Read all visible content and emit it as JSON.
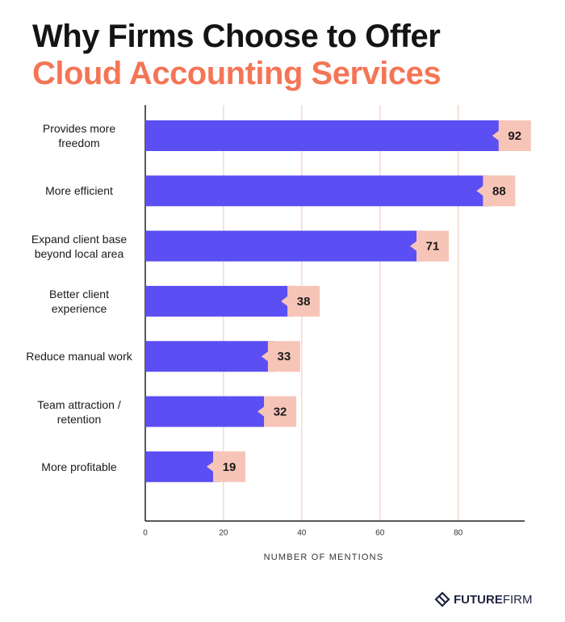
{
  "chart_data": {
    "type": "hbar",
    "title_lines": [
      "Why Firms Choose to Offer",
      "Cloud Accounting Services"
    ],
    "title_colors": [
      "#141414",
      "#f47556"
    ],
    "categories": [
      "Provides more freedom",
      "More efficient",
      "Expand client base beyond local area",
      "Better client experience",
      "Reduce manual work",
      "Team attraction / retention",
      "More profitable"
    ],
    "values": [
      92,
      88,
      71,
      38,
      33,
      32,
      19
    ],
    "color": "#5b4ef2",
    "label_color": "#f7c5b8",
    "xlim": [
      0,
      97
    ],
    "xticks": [
      0,
      20,
      40,
      60,
      80
    ],
    "grid": true,
    "grid_color": "#f6cdc3",
    "x_label": "NUMBER OF MENTIONS",
    "brand": [
      "FUTURE",
      "FIRM"
    ]
  }
}
